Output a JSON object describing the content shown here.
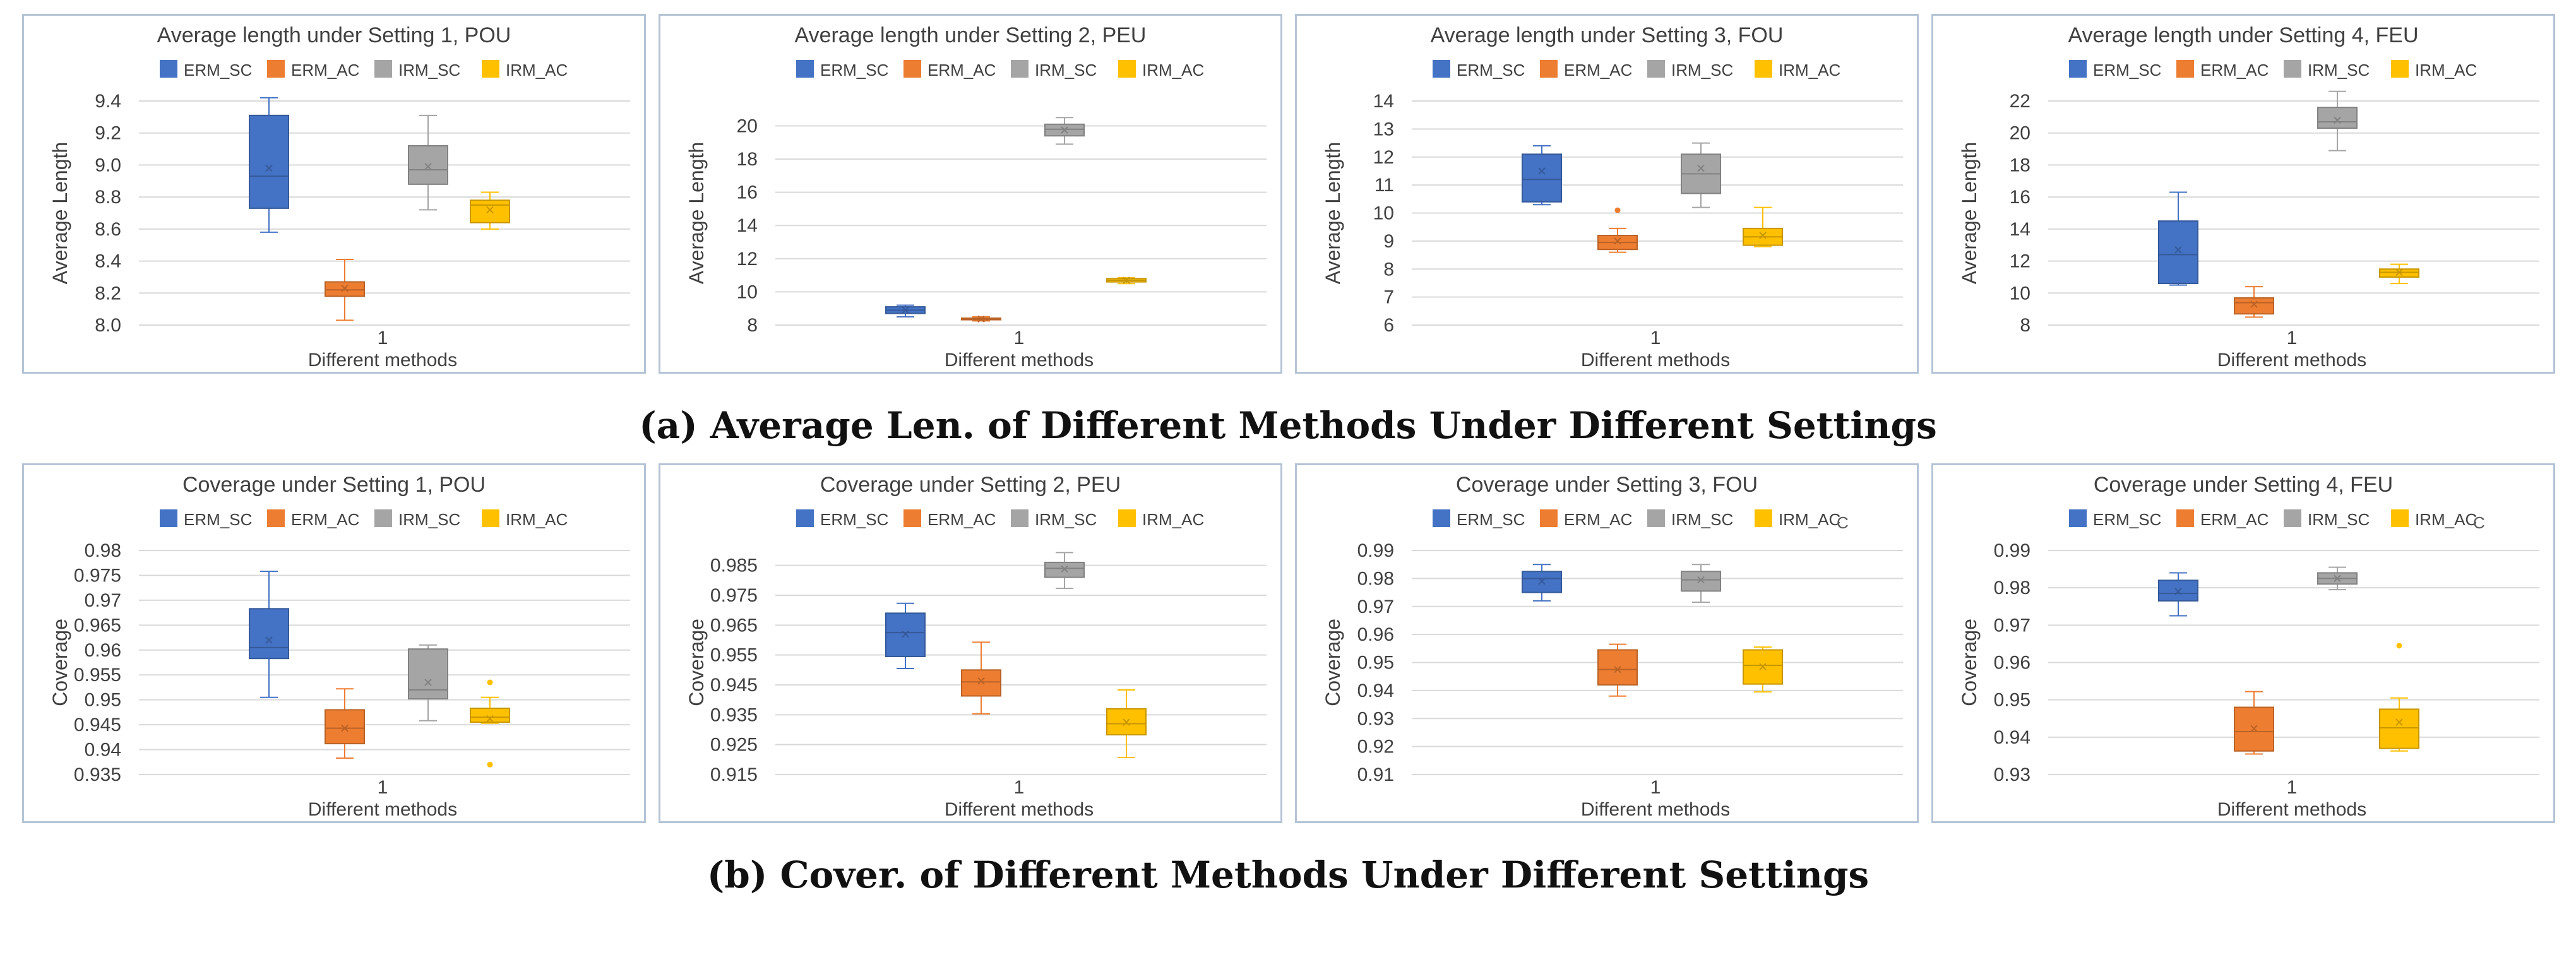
{
  "colors": {
    "ERM_SC": "#4472c4",
    "ERM_AC": "#ed7d31",
    "IRM_SC": "#a5a5a5",
    "IRM_AC": "#ffc000"
  },
  "captions": {
    "a": "(a) Average Len. of Different Methods Under Different Settings",
    "b": "(b) Cover. of Different Methods Under Different Settings"
  },
  "chart_data": [
    {
      "type": "box",
      "title": "Average length under Setting 1, POU",
      "xlabel": "Different methods",
      "ylabel": "Average Length",
      "category": "1",
      "yticks": [
        "8.0",
        "8.2",
        "8.4",
        "8.6",
        "8.8",
        "9.0",
        "9.2",
        "9.4"
      ],
      "ylim": [
        8.0,
        9.4
      ],
      "legend": [
        "ERM_SC",
        "ERM_AC",
        "IRM_SC",
        "IRM_AC"
      ],
      "boxes": [
        {
          "name": "ERM_SC",
          "min": 8.58,
          "q1": 8.73,
          "median": 8.93,
          "q3": 9.31,
          "max": 9.42,
          "mean": 8.98,
          "outliers": []
        },
        {
          "name": "ERM_AC",
          "min": 8.03,
          "q1": 8.18,
          "median": 8.22,
          "q3": 8.27,
          "max": 8.41,
          "mean": 8.23,
          "outliers": []
        },
        {
          "name": "IRM_SC",
          "min": 8.72,
          "q1": 8.88,
          "median": 8.97,
          "q3": 9.12,
          "max": 9.31,
          "mean": 8.99,
          "outliers": []
        },
        {
          "name": "IRM_AC",
          "min": 8.6,
          "q1": 8.64,
          "median": 8.75,
          "q3": 8.78,
          "max": 8.83,
          "mean": 8.72,
          "outliers": []
        }
      ]
    },
    {
      "type": "box",
      "title": "Average length under Setting 2, PEU",
      "xlabel": "Different methods",
      "ylabel": "Average Length",
      "category": "1",
      "yticks": [
        "8",
        "10",
        "12",
        "14",
        "16",
        "18",
        "20"
      ],
      "ylim": [
        8,
        21.5
      ],
      "legend": [
        "ERM_SC",
        "ERM_AC",
        "IRM_SC",
        "IRM_AC"
      ],
      "boxes": [
        {
          "name": "ERM_SC",
          "min": 8.5,
          "q1": 8.7,
          "median": 8.9,
          "q3": 9.1,
          "max": 9.2,
          "mean": 8.9,
          "outliers": []
        },
        {
          "name": "ERM_AC",
          "min": 8.25,
          "q1": 8.32,
          "median": 8.37,
          "q3": 8.42,
          "max": 8.5,
          "mean": 8.37,
          "outliers": []
        },
        {
          "name": "IRM_SC",
          "min": 18.9,
          "q1": 19.4,
          "median": 19.8,
          "q3": 20.1,
          "max": 20.5,
          "mean": 19.75,
          "outliers": []
        },
        {
          "name": "IRM_AC",
          "min": 10.5,
          "q1": 10.6,
          "median": 10.7,
          "q3": 10.8,
          "max": 10.85,
          "mean": 10.7,
          "outliers": []
        }
      ]
    },
    {
      "type": "box",
      "title": "Average length under Setting 3, FOU",
      "xlabel": "Different methods",
      "ylabel": "Average Length",
      "category": "1",
      "yticks": [
        "6",
        "7",
        "8",
        "9",
        "10",
        "11",
        "12",
        "13",
        "14"
      ],
      "ylim": [
        6,
        14
      ],
      "legend": [
        "ERM_SC",
        "ERM_AC",
        "IRM_SC",
        "IRM_AC"
      ],
      "boxes": [
        {
          "name": "ERM_SC",
          "min": 10.3,
          "q1": 10.4,
          "median": 11.2,
          "q3": 12.1,
          "max": 12.4,
          "mean": 11.5,
          "outliers": []
        },
        {
          "name": "ERM_AC",
          "min": 8.6,
          "q1": 8.7,
          "median": 8.95,
          "q3": 9.2,
          "max": 9.45,
          "mean": 9.0,
          "outliers": [
            10.1
          ]
        },
        {
          "name": "IRM_SC",
          "min": 10.2,
          "q1": 10.7,
          "median": 11.4,
          "q3": 12.1,
          "max": 12.5,
          "mean": 11.6,
          "outliers": []
        },
        {
          "name": "IRM_AC",
          "min": 8.8,
          "q1": 8.85,
          "median": 9.15,
          "q3": 9.45,
          "max": 10.2,
          "mean": 9.2,
          "outliers": []
        }
      ]
    },
    {
      "type": "box",
      "title": "Average length under Setting 4, FEU",
      "xlabel": "Different methods",
      "ylabel": "Average Length",
      "category": "1",
      "yticks": [
        "8",
        "10",
        "12",
        "14",
        "16",
        "18",
        "20",
        "22"
      ],
      "ylim": [
        8,
        22
      ],
      "legend": [
        "ERM_SC",
        "ERM_AC",
        "IRM_SC",
        "IRM_AC"
      ],
      "boxes": [
        {
          "name": "ERM_SC",
          "min": 10.5,
          "q1": 10.6,
          "median": 12.4,
          "q3": 14.5,
          "max": 16.3,
          "mean": 12.7,
          "outliers": []
        },
        {
          "name": "ERM_AC",
          "min": 8.5,
          "q1": 8.7,
          "median": 9.4,
          "q3": 9.7,
          "max": 10.4,
          "mean": 9.3,
          "outliers": []
        },
        {
          "name": "IRM_SC",
          "min": 18.9,
          "q1": 20.3,
          "median": 20.7,
          "q3": 21.6,
          "max": 22.6,
          "mean": 20.8,
          "outliers": []
        },
        {
          "name": "IRM_AC",
          "min": 10.6,
          "q1": 11.0,
          "median": 11.3,
          "q3": 11.5,
          "max": 11.8,
          "mean": 11.3,
          "outliers": []
        }
      ]
    },
    {
      "type": "box",
      "title": "Coverage under Setting 1, POU",
      "xlabel": "Different methods",
      "ylabel": "Coverage",
      "category": "1",
      "yticks": [
        "0.935",
        "0.94",
        "0.945",
        "0.95",
        "0.955",
        "0.96",
        "0.965",
        "0.97",
        "0.975",
        "0.98"
      ],
      "ylim": [
        0.935,
        0.98
      ],
      "legend": [
        "ERM_SC",
        "ERM_AC",
        "IRM_SC",
        "IRM_AC"
      ],
      "boxes": [
        {
          "name": "ERM_SC",
          "min": 0.9505,
          "q1": 0.9583,
          "median": 0.9605,
          "q3": 0.9683,
          "max": 0.9758,
          "mean": 0.962,
          "outliers": []
        },
        {
          "name": "ERM_AC",
          "min": 0.9383,
          "q1": 0.9412,
          "median": 0.9443,
          "q3": 0.948,
          "max": 0.9522,
          "mean": 0.9443,
          "outliers": []
        },
        {
          "name": "IRM_SC",
          "min": 0.9458,
          "q1": 0.9502,
          "median": 0.952,
          "q3": 0.9602,
          "max": 0.961,
          "mean": 0.9535,
          "outliers": []
        },
        {
          "name": "IRM_AC",
          "min": 0.9453,
          "q1": 0.9455,
          "median": 0.9465,
          "q3": 0.9483,
          "max": 0.9505,
          "mean": 0.9462,
          "outliers": [
            0.9535,
            0.937
          ]
        }
      ]
    },
    {
      "type": "box",
      "title": "Coverage under Setting 2, PEU",
      "xlabel": "Different methods",
      "ylabel": "Coverage",
      "category": "1",
      "yticks": [
        "0.915",
        "0.925",
        "0.935",
        "0.945",
        "0.955",
        "0.965",
        "0.975",
        "0.985"
      ],
      "ylim": [
        0.915,
        0.99
      ],
      "legend": [
        "ERM_SC",
        "ERM_AC",
        "IRM_SC",
        "IRM_AC"
      ],
      "boxes": [
        {
          "name": "ERM_SC",
          "min": 0.9505,
          "q1": 0.9545,
          "median": 0.9625,
          "q3": 0.969,
          "max": 0.9723,
          "mean": 0.962,
          "outliers": []
        },
        {
          "name": "ERM_AC",
          "min": 0.9353,
          "q1": 0.9413,
          "median": 0.946,
          "q3": 0.95,
          "max": 0.9593,
          "mean": 0.9463,
          "outliers": []
        },
        {
          "name": "IRM_SC",
          "min": 0.9773,
          "q1": 0.981,
          "median": 0.984,
          "q3": 0.986,
          "max": 0.9893,
          "mean": 0.9838,
          "outliers": []
        },
        {
          "name": "IRM_AC",
          "min": 0.9207,
          "q1": 0.9283,
          "median": 0.932,
          "q3": 0.937,
          "max": 0.9433,
          "mean": 0.9325,
          "outliers": []
        }
      ]
    },
    {
      "type": "box",
      "title": "Coverage under Setting 3, FOU",
      "xlabel": "Different methods",
      "ylabel": "Coverage",
      "category": "1",
      "yticks": [
        "0.91",
        "0.92",
        "0.93",
        "0.94",
        "0.95",
        "0.96",
        "0.97",
        "0.98",
        "0.99"
      ],
      "ylim": [
        0.91,
        0.99
      ],
      "legend": [
        "ERM_SC",
        "ERM_AC",
        "IRM_SC",
        "IRM_AC"
      ],
      "legend_extra": "C",
      "boxes": [
        {
          "name": "ERM_SC",
          "min": 0.972,
          "q1": 0.975,
          "median": 0.98,
          "q3": 0.9825,
          "max": 0.985,
          "mean": 0.979,
          "outliers": []
        },
        {
          "name": "ERM_AC",
          "min": 0.938,
          "q1": 0.942,
          "median": 0.9475,
          "q3": 0.9545,
          "max": 0.9565,
          "mean": 0.9475,
          "outliers": []
        },
        {
          "name": "IRM_SC",
          "min": 0.9715,
          "q1": 0.9755,
          "median": 0.9795,
          "q3": 0.9825,
          "max": 0.985,
          "mean": 0.9795,
          "outliers": []
        },
        {
          "name": "IRM_AC",
          "min": 0.9395,
          "q1": 0.9423,
          "median": 0.949,
          "q3": 0.9545,
          "max": 0.9555,
          "mean": 0.9485,
          "outliers": []
        }
      ]
    },
    {
      "type": "box",
      "title": "Coverage under Setting 4, FEU",
      "xlabel": "Different methods",
      "ylabel": "Coverage",
      "category": "1",
      "yticks": [
        "0.93",
        "0.94",
        "0.95",
        "0.96",
        "0.97",
        "0.98",
        "0.99"
      ],
      "ylim": [
        0.93,
        0.99
      ],
      "legend": [
        "ERM_SC",
        "ERM_AC",
        "IRM_SC",
        "IRM_AC"
      ],
      "legend_extra": "C",
      "boxes": [
        {
          "name": "ERM_SC",
          "min": 0.9725,
          "q1": 0.9765,
          "median": 0.9785,
          "q3": 0.982,
          "max": 0.984,
          "mean": 0.979,
          "outliers": []
        },
        {
          "name": "ERM_AC",
          "min": 0.9355,
          "q1": 0.9363,
          "median": 0.9415,
          "q3": 0.948,
          "max": 0.9522,
          "mean": 0.9423,
          "outliers": []
        },
        {
          "name": "IRM_SC",
          "min": 0.9795,
          "q1": 0.981,
          "median": 0.9825,
          "q3": 0.984,
          "max": 0.9855,
          "mean": 0.9825,
          "outliers": []
        },
        {
          "name": "IRM_AC",
          "min": 0.9363,
          "q1": 0.937,
          "median": 0.9425,
          "q3": 0.9475,
          "max": 0.9505,
          "mean": 0.944,
          "outliers": [
            0.9645
          ]
        }
      ]
    }
  ]
}
